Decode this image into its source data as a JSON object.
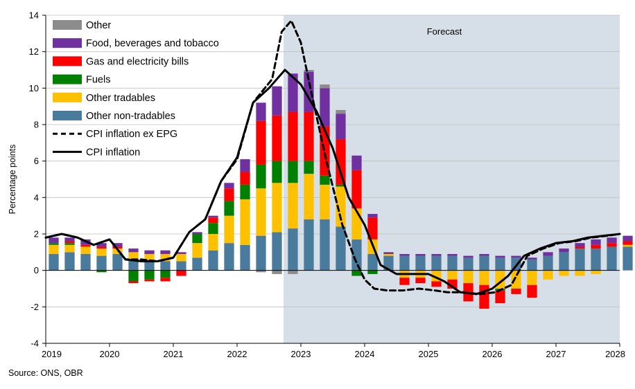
{
  "source_note": "Source: ONS, OBR",
  "colors": {
    "forecast_bg": "#d6dfe7",
    "other": "#8c8c8c",
    "food": "#7030a0",
    "gas_elec": "#ff0000",
    "fuels": "#008000",
    "other_tradables": "#ffc000",
    "other_non_tradables": "#4a7a9c",
    "line": "#000000",
    "gridline": "#bfbfbf"
  },
  "chart_data": {
    "type": "bar",
    "subtype": "stacked bar with line overlays",
    "title": "",
    "xlabel": "",
    "ylabel": "Percentage points",
    "ylim": [
      -4,
      14
    ],
    "yticks": [
      "-4",
      "-2",
      "0",
      "2",
      "4",
      "6",
      "8",
      "10",
      "12",
      "14"
    ],
    "x_tick_labels": [
      "2019",
      "2020",
      "2021",
      "2022",
      "2023",
      "2024",
      "2025",
      "2026",
      "2027",
      "2028"
    ],
    "x_start_year": 2019,
    "periods": [
      "2019Q1",
      "2019Q2",
      "2019Q3",
      "2019Q4",
      "2020Q1",
      "2020Q2",
      "2020Q3",
      "2020Q4",
      "2021Q1",
      "2021Q2",
      "2021Q3",
      "2021Q4",
      "2022Q1",
      "2022Q2",
      "2022Q3",
      "2022Q4",
      "2023Q1",
      "2023Q2",
      "2023Q3",
      "2023Q4",
      "2024Q1",
      "2024Q2",
      "2024Q3",
      "2024Q4",
      "2025Q1",
      "2025Q2",
      "2025Q3",
      "2025Q4",
      "2026Q1",
      "2026Q2",
      "2026Q3",
      "2026Q4",
      "2027Q1",
      "2027Q2",
      "2027Q3",
      "2027Q4",
      "2028Q1"
    ],
    "forecast_start": "2022Q4",
    "forecast_label": "Forecast",
    "gridlines": true,
    "legend_position": "top-left",
    "series": [
      {
        "name": "Other non-tradables",
        "color_key": "other_non_tradables",
        "kind": "bar",
        "values": [
          0.9,
          1.0,
          0.9,
          0.8,
          0.9,
          0.6,
          0.5,
          0.5,
          0.5,
          0.7,
          1.1,
          1.5,
          1.4,
          1.9,
          2.1,
          2.3,
          2.8,
          2.8,
          2.4,
          1.7,
          0.9,
          0.8,
          0.8,
          0.8,
          0.8,
          0.8,
          0.7,
          0.8,
          0.7,
          0.7,
          0.6,
          0.8,
          1.0,
          1.2,
          1.2,
          1.3,
          1.3
        ]
      },
      {
        "name": "Other tradables",
        "color_key": "other_tradables",
        "kind": "bar",
        "values": [
          0.5,
          0.4,
          0.4,
          0.4,
          0.3,
          0.4,
          0.4,
          0.4,
          0.4,
          0.8,
          0.9,
          1.5,
          2.5,
          2.6,
          2.7,
          2.5,
          2.5,
          1.9,
          2.2,
          1.7,
          0.8,
          0.1,
          -0.4,
          -0.4,
          -0.6,
          -0.5,
          -0.7,
          -0.8,
          -1.0,
          -1.0,
          -0.8,
          -0.5,
          -0.3,
          -0.3,
          -0.2,
          0.0,
          0.1
        ]
      },
      {
        "name": "Fuels",
        "color_key": "fuels",
        "kind": "bar",
        "values": [
          0.1,
          0.1,
          0.0,
          -0.1,
          0.0,
          -0.6,
          -0.5,
          -0.4,
          0.0,
          0.5,
          0.6,
          0.8,
          0.8,
          1.3,
          1.2,
          1.2,
          0.7,
          0.5,
          0.1,
          -0.3,
          -0.2,
          0.0,
          0.0,
          0.0,
          0.0,
          0.0,
          0.0,
          0.0,
          -0.1,
          0.0,
          0.0,
          0.0,
          0.0,
          0.0,
          0.0,
          0.0,
          0.0
        ]
      },
      {
        "name": "Gas and electricity bills",
        "color_key": "gas_elec",
        "kind": "bar",
        "values": [
          0.0,
          0.1,
          0.1,
          0.1,
          0.1,
          -0.1,
          -0.1,
          -0.2,
          -0.3,
          0.0,
          0.3,
          0.7,
          0.7,
          2.4,
          2.5,
          2.7,
          2.7,
          2.7,
          2.5,
          2.1,
          1.2,
          0.0,
          -0.4,
          -0.3,
          -0.3,
          -0.5,
          -1.0,
          -1.3,
          -0.7,
          -0.3,
          -0.7,
          0.0,
          0.0,
          0.1,
          0.2,
          0.2,
          0.2
        ]
      },
      {
        "name": "Food, beverages and tobacco",
        "color_key": "food",
        "kind": "bar",
        "values": [
          0.3,
          0.2,
          0.3,
          0.2,
          0.2,
          0.2,
          0.2,
          0.2,
          0.1,
          0.1,
          0.1,
          0.3,
          0.7,
          1.0,
          1.6,
          2.1,
          2.2,
          2.1,
          1.4,
          0.8,
          0.2,
          0.1,
          0.1,
          0.1,
          0.1,
          0.1,
          0.1,
          0.1,
          0.1,
          0.1,
          0.1,
          0.2,
          0.2,
          0.2,
          0.3,
          0.3,
          0.3
        ]
      },
      {
        "name": "Other",
        "color_key": "other",
        "kind": "bar",
        "values": [
          0.0,
          0.0,
          0.0,
          0.0,
          0.0,
          0.0,
          0.0,
          0.0,
          0.0,
          0.0,
          0.0,
          0.0,
          0.0,
          -0.1,
          -0.2,
          -0.2,
          0.1,
          0.2,
          0.2,
          0.0,
          0.0,
          0.0,
          0.0,
          0.0,
          0.0,
          0.0,
          0.0,
          0.0,
          0.0,
          0.0,
          0.0,
          0.0,
          0.0,
          0.0,
          0.0,
          0.0,
          0.0
        ]
      },
      {
        "name": "CPI inflation ex EPG",
        "kind": "line",
        "style": "dashed",
        "x": [
          2019.0,
          2019.25,
          2019.5,
          2019.75,
          2020.0,
          2020.25,
          2020.5,
          2020.75,
          2021.0,
          2021.25,
          2021.5,
          2021.75,
          2022.0,
          2022.25,
          2022.55,
          2022.7,
          2022.85,
          2023.0,
          2023.15,
          2023.4,
          2023.65,
          2023.85,
          2024.0,
          2024.15,
          2024.35,
          2024.6,
          2024.85,
          2025.1,
          2025.3,
          2025.55,
          2025.8,
          2026.05,
          2026.3,
          2026.55,
          2026.8,
          2027.05,
          2027.3,
          2027.55,
          2027.8,
          2028.0
        ],
        "y": [
          1.8,
          2.0,
          1.8,
          1.4,
          1.7,
          0.6,
          0.6,
          0.5,
          0.7,
          2.1,
          2.8,
          4.9,
          6.1,
          9.2,
          10.5,
          13.1,
          13.7,
          12.5,
          10.0,
          6.0,
          2.5,
          0.6,
          -0.5,
          -1.0,
          -1.1,
          -1.1,
          -1.0,
          -1.1,
          -1.2,
          -1.2,
          -1.3,
          -1.2,
          -0.8,
          0.8,
          1.2,
          1.5,
          1.6,
          1.8,
          1.9,
          2.0
        ]
      },
      {
        "name": "CPI inflation",
        "kind": "line",
        "style": "solid",
        "x": [
          2019.0,
          2019.25,
          2019.5,
          2019.75,
          2020.0,
          2020.25,
          2020.5,
          2020.75,
          2021.0,
          2021.25,
          2021.5,
          2021.75,
          2022.0,
          2022.25,
          2022.5,
          2022.75,
          2023.0,
          2023.25,
          2023.5,
          2023.75,
          2024.0,
          2024.25,
          2024.5,
          2024.75,
          2025.0,
          2025.25,
          2025.5,
          2025.75,
          2026.0,
          2026.25,
          2026.5,
          2026.75,
          2027.0,
          2027.25,
          2027.5,
          2027.75,
          2028.0
        ],
        "y": [
          1.8,
          2.0,
          1.8,
          1.4,
          1.7,
          0.6,
          0.5,
          0.5,
          0.7,
          2.1,
          2.8,
          4.9,
          6.2,
          9.2,
          10.0,
          11.0,
          10.2,
          8.7,
          6.7,
          4.0,
          2.5,
          0.3,
          -0.2,
          -0.2,
          -0.2,
          -0.6,
          -1.2,
          -1.3,
          -1.0,
          -0.3,
          0.8,
          1.2,
          1.5,
          1.6,
          1.8,
          1.9,
          2.0
        ]
      }
    ],
    "legend_order": [
      "Other",
      "Food, beverages and tobacco",
      "Gas and electricity bills",
      "Fuels",
      "Other tradables",
      "Other non-tradables",
      "CPI inflation ex EPG",
      "CPI inflation"
    ]
  }
}
